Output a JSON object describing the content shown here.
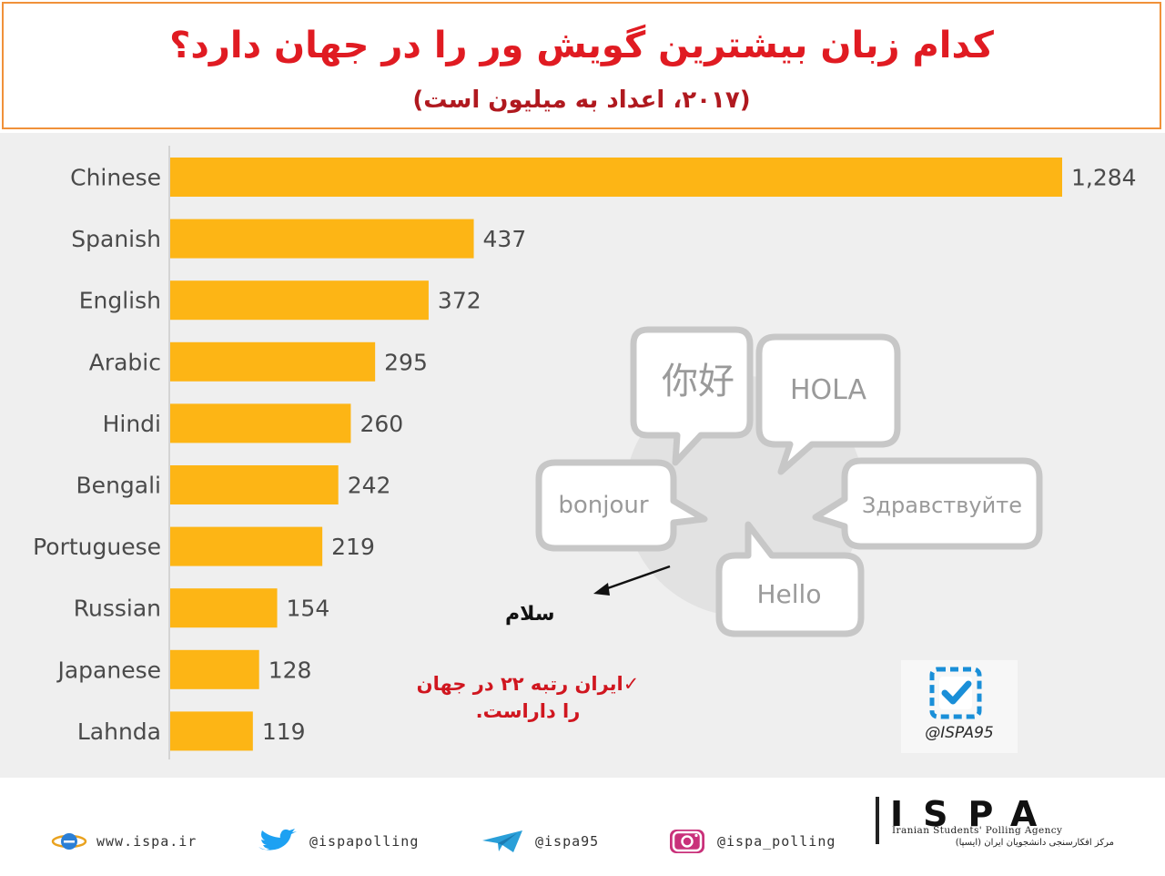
{
  "header": {
    "title": "کدام زبان بیشترین گویش ور  را در جهان دارد؟",
    "subtitle": "(۲۰۱۷، اعداد به میلیون است)"
  },
  "chart_data": {
    "type": "bar",
    "orientation": "horizontal",
    "categories": [
      "Chinese",
      "Spanish",
      "English",
      "Arabic",
      "Hindi",
      "Bengali",
      "Portuguese",
      "Russian",
      "Japanese",
      "Lahnda"
    ],
    "values": [
      1284,
      437,
      372,
      295,
      260,
      242,
      219,
      154,
      128,
      119
    ],
    "value_labels": [
      "1,284",
      "437",
      "372",
      "295",
      "260",
      "242",
      "219",
      "154",
      "128",
      "119"
    ],
    "bar_color": "#fdb515",
    "xlim": [
      0,
      1284
    ],
    "grid": false
  },
  "graphic": {
    "bubbles": [
      "你好",
      "HOLA",
      "bonjour",
      "Здравствуйте",
      "Hello"
    ],
    "arrow_label": "سلام",
    "note_line1": "✓ایران رتبه ۲۲ در جهان",
    "note_line2": "را داراست."
  },
  "logo": {
    "handle": "@ISPA95",
    "check_color": "#1a8fd8"
  },
  "footer": {
    "website": "www.ispa.ir",
    "twitter": "@ispapolling",
    "telegram": "@ispa95",
    "instagram": "@ispa_polling",
    "brand": "ISPA",
    "brand_en": "Iranian Students' Polling Agency",
    "brand_fa": "مرکز افکارسنجی دانشجویان ایران (ایسپا)"
  },
  "colors": {
    "title": "#e01b22",
    "frame": "#f0913a",
    "note": "#d0161f",
    "panel": "#efefef"
  }
}
